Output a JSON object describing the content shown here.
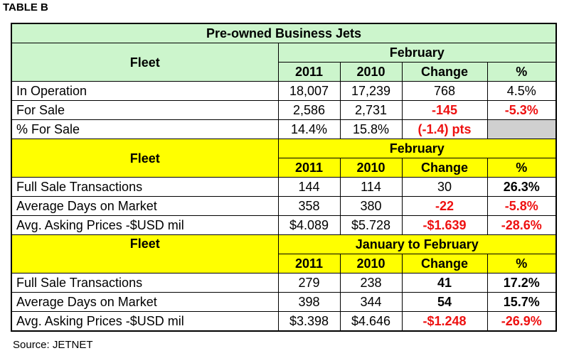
{
  "table_label": "TABLE B",
  "title": "Pre-owned Business Jets",
  "source": "Source: JETNET",
  "colors": {
    "green": "#ccf5cc",
    "yellow": "#ffff00",
    "negative": "#ee1111",
    "grey_cell": "#d0d0d0"
  },
  "columns": [
    "2011",
    "2010",
    "Change",
    "%"
  ],
  "sections": [
    {
      "fleet_label": "Fleet",
      "period": "February",
      "rows": [
        {
          "label": "In Operation",
          "y2011": "18,007",
          "y2010": "17,239",
          "change": "768",
          "pct": "4.5%"
        },
        {
          "label": "For Sale",
          "y2011": "2,586",
          "y2010": "2,731",
          "change": "-145",
          "pct": "-5.3%"
        },
        {
          "label": "% For Sale",
          "y2011": "14.4%",
          "y2010": "15.8%",
          "change": "(-1.4) pts",
          "pct": ""
        }
      ]
    },
    {
      "fleet_label": "Fleet",
      "period": "February",
      "rows": [
        {
          "label": "Full Sale Transactions",
          "y2011": "144",
          "y2010": "114",
          "change": "30",
          "pct": "26.3%"
        },
        {
          "label": "Average Days on Market",
          "y2011": "358",
          "y2010": "380",
          "change": "-22",
          "pct": "-5.8%"
        },
        {
          "label": "Avg. Asking Prices -$USD mil",
          "y2011": "$4.089",
          "y2010": "$5.728",
          "change": "-$1.639",
          "pct": "-28.6%"
        }
      ]
    },
    {
      "fleet_label": "Fleet",
      "period": "January to February",
      "rows": [
        {
          "label": "Full Sale Transactions",
          "y2011": "279",
          "y2010": "238",
          "change": "41",
          "pct": "17.2%"
        },
        {
          "label": "Average Days on Market",
          "y2011": "398",
          "y2010": "344",
          "change": "54",
          "pct": "15.7%"
        },
        {
          "label": "Avg. Asking Prices -$USD mil",
          "y2011": "$3.398",
          "y2010": "$4.646",
          "change": "-$1.248",
          "pct": "-26.9%"
        }
      ]
    }
  ]
}
